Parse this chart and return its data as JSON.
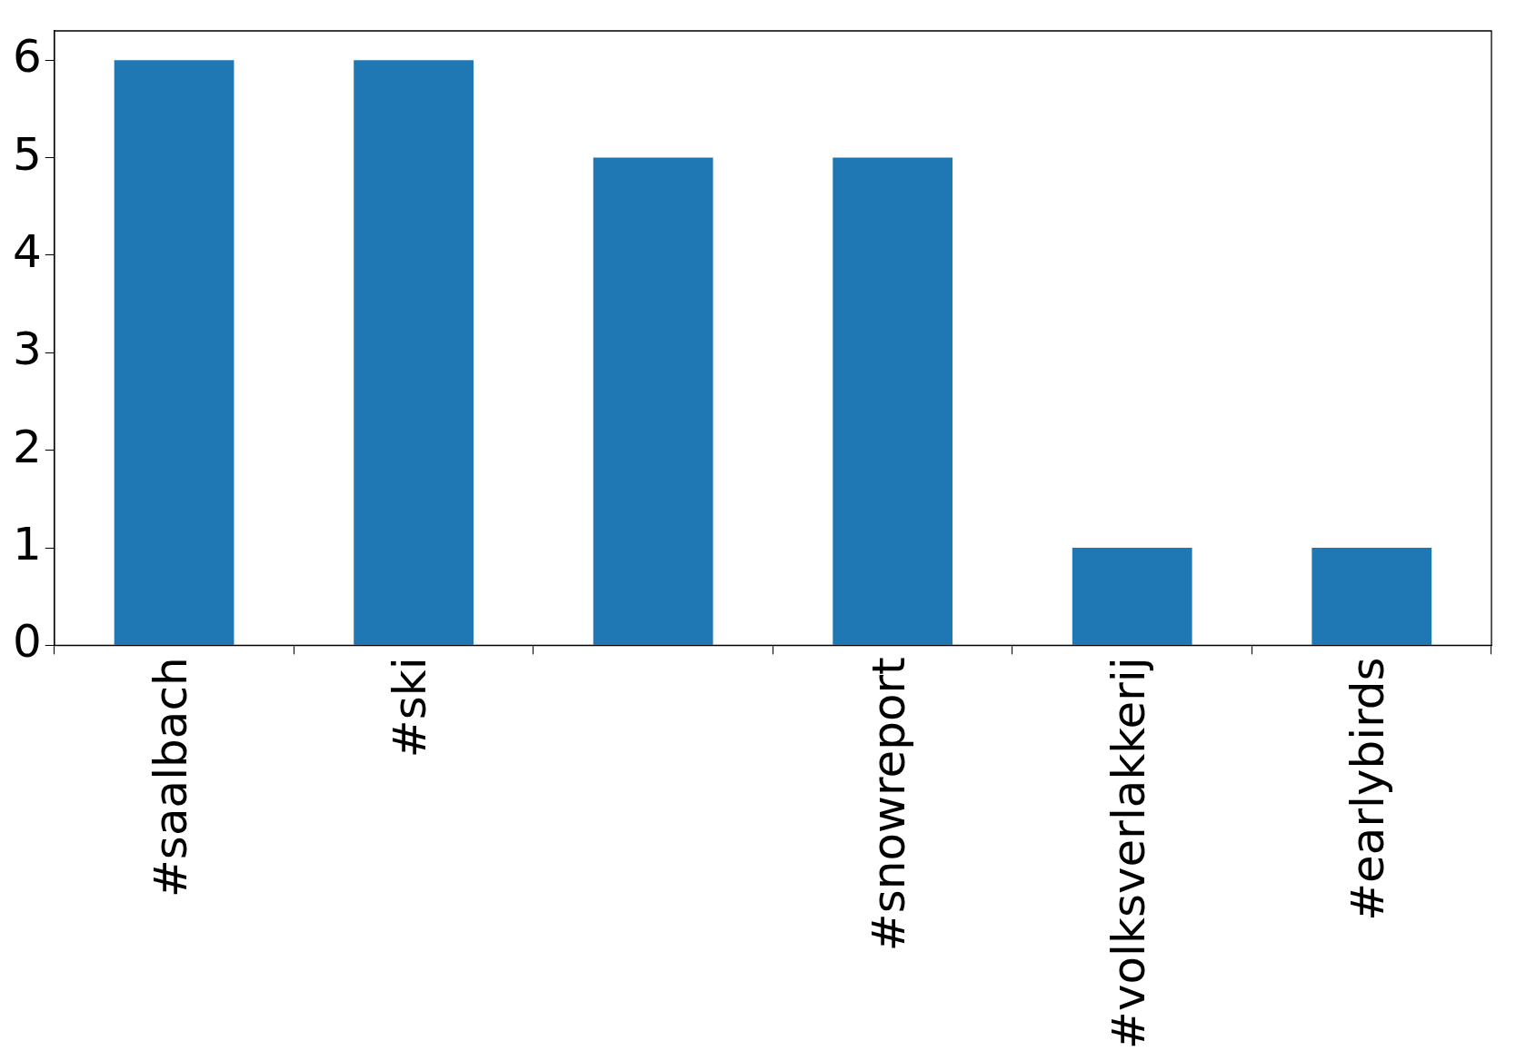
{
  "chart_data": {
    "type": "bar",
    "categories": [
      "#saalbach",
      "#ski",
      null,
      "#snowreport",
      "#volksverlakkerij",
      "#earlybirds"
    ],
    "values": [
      6,
      6,
      5,
      5,
      1,
      1
    ],
    "color": "#1f77b4",
    "ylim": [
      0,
      6.3
    ],
    "yticks": [
      0,
      1,
      2,
      3,
      4,
      5,
      6
    ],
    "grid": false,
    "legend": false
  }
}
